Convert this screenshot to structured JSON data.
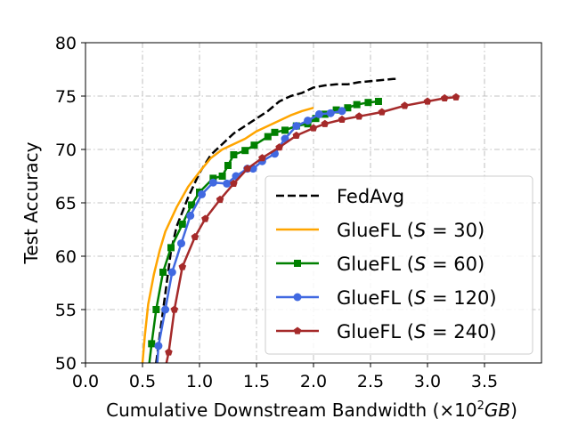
{
  "chart_data": {
    "type": "line",
    "xlabel_text": "Cumulative Downstream Bandwidth (×10",
    "xlabel_sup": "2",
    "xlabel_unit": "GB",
    "xlabel_close": ")",
    "ylabel": "Test Accuracy",
    "xlim": [
      0.0,
      4.0
    ],
    "ylim": [
      50,
      80
    ],
    "xticks": [
      "0.0",
      "0.5",
      "1.0",
      "1.5",
      "2.0",
      "2.5",
      "3.0",
      "3.5"
    ],
    "xtick_values": [
      0.0,
      0.5,
      1.0,
      1.5,
      2.0,
      2.5,
      3.0,
      3.5
    ],
    "yticks": [
      "50",
      "55",
      "60",
      "65",
      "70",
      "75",
      "80"
    ],
    "ytick_values": [
      50,
      55,
      60,
      65,
      70,
      75,
      80
    ],
    "grid": true,
    "legend_position": "lower-right",
    "series": [
      {
        "name": "FedAvg",
        "color": "#000000",
        "dashed": true,
        "marker": "none",
        "x": [
          0.62,
          0.65,
          0.7,
          0.75,
          0.8,
          0.9,
          1.0,
          1.1,
          1.2,
          1.3,
          1.4,
          1.5,
          1.6,
          1.7,
          1.8,
          1.9,
          2.0,
          2.1,
          2.2,
          2.3,
          2.4,
          2.5,
          2.6,
          2.7,
          2.75
        ],
        "y": [
          50.0,
          52.5,
          56.5,
          60.5,
          62.8,
          65.5,
          67.8,
          69.5,
          70.5,
          71.5,
          72.2,
          72.9,
          73.6,
          74.5,
          75.0,
          75.3,
          75.8,
          76.0,
          76.1,
          76.1,
          76.3,
          76.4,
          76.5,
          76.6,
          76.6
        ]
      },
      {
        "name": "GlueFL (S = 30)",
        "name_prefix": "GlueFL (",
        "name_var": "S",
        "name_suffix": " = 30)",
        "color": "#FFA500",
        "dashed": false,
        "marker": "none",
        "x": [
          0.5,
          0.52,
          0.55,
          0.6,
          0.65,
          0.7,
          0.8,
          0.9,
          1.0,
          1.1,
          1.2,
          1.3,
          1.4,
          1.5,
          1.6,
          1.7,
          1.8,
          1.9,
          2.0
        ],
        "y": [
          50.0,
          52.5,
          55.5,
          58.3,
          60.5,
          62.3,
          64.6,
          66.5,
          67.9,
          69.2,
          70.0,
          70.5,
          71.0,
          71.7,
          72.2,
          72.7,
          73.2,
          73.6,
          73.9
        ]
      },
      {
        "name": "GlueFL (S = 60)",
        "name_prefix": "GlueFL (",
        "name_var": "S",
        "name_suffix": " = 60)",
        "color": "#008000",
        "dashed": false,
        "marker": "square",
        "x": [
          0.56,
          0.58,
          0.62,
          0.68,
          0.75,
          0.85,
          0.93,
          1.0,
          1.12,
          1.2,
          1.25,
          1.3,
          1.4,
          1.48,
          1.6,
          1.66,
          1.75,
          1.85,
          1.95,
          2.02,
          2.1,
          2.2,
          2.3,
          2.38,
          2.48,
          2.57
        ],
        "y": [
          50.0,
          51.8,
          55.0,
          58.5,
          60.8,
          63.0,
          64.8,
          66.0,
          67.3,
          67.5,
          68.5,
          69.5,
          69.9,
          70.4,
          71.2,
          71.6,
          71.8,
          72.2,
          72.4,
          72.9,
          73.3,
          73.7,
          73.9,
          74.2,
          74.4,
          74.5
        ]
      },
      {
        "name": "GlueFL (S = 120)",
        "name_prefix": "GlueFL (",
        "name_var": "S",
        "name_suffix": " = 120)",
        "color": "#4169E1",
        "dashed": false,
        "marker": "circle",
        "x": [
          0.63,
          0.64,
          0.7,
          0.76,
          0.84,
          0.92,
          1.02,
          1.12,
          1.24,
          1.32,
          1.42,
          1.47,
          1.55,
          1.66,
          1.75,
          1.85,
          1.95,
          2.05,
          2.15,
          2.25
        ],
        "y": [
          50.0,
          51.6,
          55.0,
          58.5,
          61.2,
          63.8,
          65.8,
          66.9,
          66.8,
          67.5,
          68.2,
          68.2,
          68.9,
          69.6,
          71.0,
          72.2,
          72.7,
          73.3,
          73.4,
          73.6
        ]
      },
      {
        "name": "GlueFL (S = 240)",
        "name_prefix": "GlueFL (",
        "name_var": "S",
        "name_suffix": " = 240)",
        "color": "#A52A2A",
        "dashed": false,
        "marker": "pentagon",
        "x": [
          0.71,
          0.73,
          0.78,
          0.85,
          0.96,
          1.05,
          1.18,
          1.3,
          1.42,
          1.55,
          1.7,
          1.85,
          2.0,
          2.1,
          2.25,
          2.4,
          2.6,
          2.8,
          3.0,
          3.15,
          3.25
        ],
        "y": [
          50.0,
          51.0,
          55.0,
          59.0,
          61.8,
          63.5,
          65.3,
          66.8,
          68.2,
          69.2,
          70.2,
          71.3,
          72.0,
          72.4,
          72.8,
          73.1,
          73.5,
          74.1,
          74.5,
          74.8,
          74.9
        ]
      }
    ]
  }
}
